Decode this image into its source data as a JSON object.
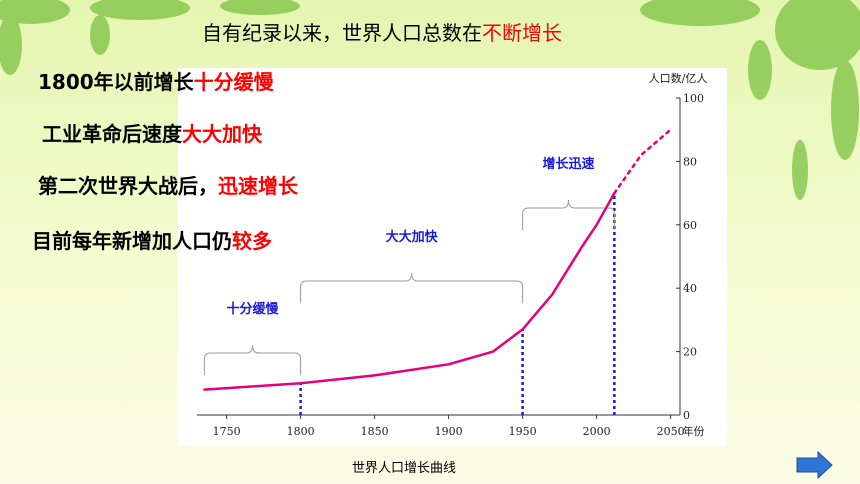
{
  "slide": {
    "heading": {
      "text": "自有纪录以来，世界人口总数在",
      "highlight": "不断增长"
    },
    "points": [
      {
        "text": "1800年以前增长",
        "highlight": "十分缓慢"
      },
      {
        "text": "工业革命后速度",
        "highlight": "大大加快"
      },
      {
        "text": "第二次世界大战后，",
        "highlight": "迅速增长"
      },
      {
        "text": "目前每年新增加人口仍",
        "highlight": "较多"
      }
    ],
    "caption": "世界人口增长曲线"
  },
  "chart_data": {
    "type": "line",
    "ylabel": "人口数/亿人",
    "xlabel": "年份",
    "xlim": [
      1730,
      2055
    ],
    "ylim": [
      0,
      100
    ],
    "xticks": [
      1750,
      1800,
      1850,
      1900,
      1950,
      2000,
      2050
    ],
    "yticks": [
      0,
      20,
      40,
      60,
      80,
      100
    ],
    "series": [
      {
        "color": "#e6007e",
        "style": "solid",
        "x": [
          1735,
          1800,
          1850,
          1900,
          1930,
          1950,
          1970,
          1990,
          2000,
          2012
        ],
        "values": [
          8,
          10,
          12.5,
          16,
          20,
          27,
          38,
          53,
          60,
          70
        ]
      },
      {
        "color": "#e6007e",
        "style": "dotted",
        "x": [
          2012,
          2030,
          2050
        ],
        "values": [
          70,
          82,
          90
        ]
      }
    ],
    "reference_lines": {
      "color": "#1a1adb",
      "x": [
        1800,
        1950,
        2012
      ],
      "values": [
        10,
        27,
        70
      ]
    },
    "annotations": [
      {
        "text": "十分缓慢",
        "span": [
          1735,
          1800
        ]
      },
      {
        "text": "大大加快",
        "span": [
          1800,
          1950
        ]
      },
      {
        "text": "增长迅速",
        "span": [
          1950,
          2012
        ]
      }
    ]
  }
}
